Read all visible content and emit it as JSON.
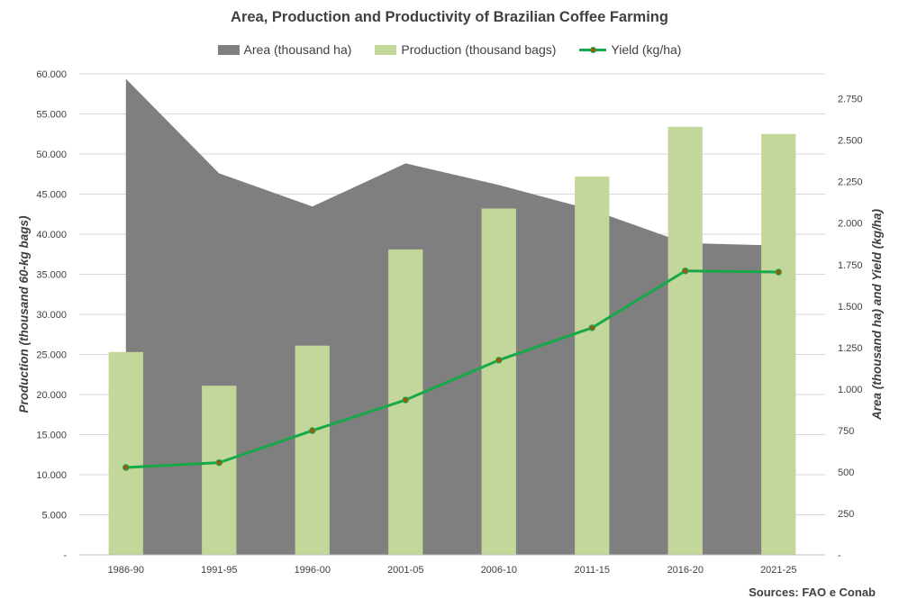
{
  "chart_data": {
    "type": "bar",
    "title": "Area, Production and Productivity of Brazilian Coffee Farming",
    "categories": [
      "1986-90",
      "1991-95",
      "1996-00",
      "2001-05",
      "2006-10",
      "2011-15",
      "2016-20",
      "2021-25"
    ],
    "series": [
      {
        "name": "Area (thousand ha)",
        "type": "area",
        "axis": "right",
        "color": "#7f7f7f",
        "values": [
          2870,
          2300,
          2100,
          2360,
          2230,
          2080,
          1880,
          1865
        ]
      },
      {
        "name": "Production (thousand bags)",
        "type": "bar",
        "axis": "left",
        "color": "#c4d79b",
        "values": [
          25300,
          21100,
          26100,
          38100,
          43200,
          47200,
          53400,
          52500
        ]
      },
      {
        "name": "Yield (kg/ha)",
        "type": "line",
        "axis": "right",
        "color": "#16a94a",
        "marker_color": "#9a5b0f",
        "values": [
          527,
          556,
          749,
          934,
          1174,
          1369,
          1712,
          1705
        ]
      }
    ],
    "left_axis": {
      "label": "Production (thousand 60-kg bags)",
      "ylim": [
        0,
        60000
      ],
      "ticks": [
        {
          "value": 0,
          "label": "-"
        },
        {
          "value": 5000,
          "label": "5.000"
        },
        {
          "value": 10000,
          "label": "10.000"
        },
        {
          "value": 15000,
          "label": "15.000"
        },
        {
          "value": 20000,
          "label": "20.000"
        },
        {
          "value": 25000,
          "label": "25.000"
        },
        {
          "value": 30000,
          "label": "30.000"
        },
        {
          "value": 35000,
          "label": "35.000"
        },
        {
          "value": 40000,
          "label": "40.000"
        },
        {
          "value": 45000,
          "label": "45.000"
        },
        {
          "value": 50000,
          "label": "50.000"
        },
        {
          "value": 55000,
          "label": "55.000"
        },
        {
          "value": 60000,
          "label": "60.000"
        }
      ]
    },
    "right_axis": {
      "label": "Area (thousand ha) and Yield (kg/ha)",
      "ylim": [
        0,
        2900
      ],
      "ticks": [
        {
          "value": 0,
          "label": "-"
        },
        {
          "value": 250,
          "label": "250"
        },
        {
          "value": 500,
          "label": "500"
        },
        {
          "value": 750,
          "label": "750"
        },
        {
          "value": 1000,
          "label": "1.000"
        },
        {
          "value": 1250,
          "label": "1.250"
        },
        {
          "value": 1500,
          "label": "1.500"
        },
        {
          "value": 1750,
          "label": "1.750"
        },
        {
          "value": 2000,
          "label": "2.000"
        },
        {
          "value": 2250,
          "label": "2.250"
        },
        {
          "value": 2500,
          "label": "2.500"
        },
        {
          "value": 2750,
          "label": "2.750"
        }
      ]
    },
    "grid": true,
    "legend_position": "top",
    "source": "Sources: FAO e Conab"
  }
}
